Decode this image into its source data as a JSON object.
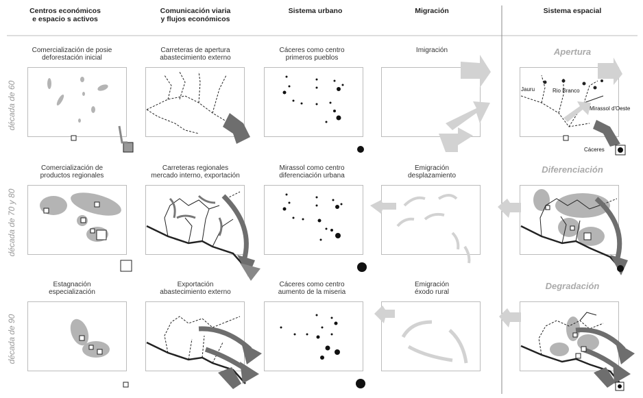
{
  "columns": [
    {
      "line1": "Centros económicos",
      "line2": "e espacio s activos"
    },
    {
      "line1": "Comunicación viaria",
      "line2": "y flujos económicos"
    },
    {
      "line1": "Sistema urbano",
      "line2": ""
    },
    {
      "line1": "Migración",
      "line2": ""
    },
    {
      "line1": "Sistema espacial",
      "line2": ""
    }
  ],
  "rows": [
    {
      "label": "década de 60"
    },
    {
      "label": "década de 70 y 80"
    },
    {
      "label": "década de 90"
    }
  ],
  "panels": {
    "r1": [
      {
        "line1": "Comercialización de posie",
        "line2": "deforestación inicial"
      },
      {
        "line1": "Carreteras de apertura",
        "line2": "abastecimiento externo"
      },
      {
        "line1": "Cáceres como centro",
        "line2": "primeros pueblos"
      },
      {
        "line1": "Imigración",
        "line2": ""
      }
    ],
    "r2": [
      {
        "line1": "Comercialización de",
        "line2": "productos regionales"
      },
      {
        "line1": "Carreteras regionales",
        "line2": "mercado interno, exportación"
      },
      {
        "line1": "Mirassol como centro",
        "line2": "diferenciación urbana"
      },
      {
        "line1": "Emigración",
        "line2": "desplazamiento"
      }
    ],
    "r3": [
      {
        "line1": "Estagnación",
        "line2": "especialización"
      },
      {
        "line1": "Exportación",
        "line2": "abastecimiento externo"
      },
      {
        "line1": "Cáceres como centro",
        "line2": "aumento de la miseria"
      },
      {
        "line1": "Emigración",
        "line2": "éxodo rural"
      }
    ]
  },
  "phases": [
    "Apertura",
    "Diferenciación",
    "Degradación"
  ],
  "city_labels": {
    "jauru": "Jauru",
    "rio_branco": "Rio Branco",
    "mirassol": "Mirassol d'Oeste",
    "caceres": "Cáceres"
  },
  "colors": {
    "grey_blob": "#b4b4b4",
    "arrow_dark": "#6e6e6e",
    "arrow_light": "#d2d2d2",
    "line": "#222222",
    "border": "#bbbbbb"
  }
}
